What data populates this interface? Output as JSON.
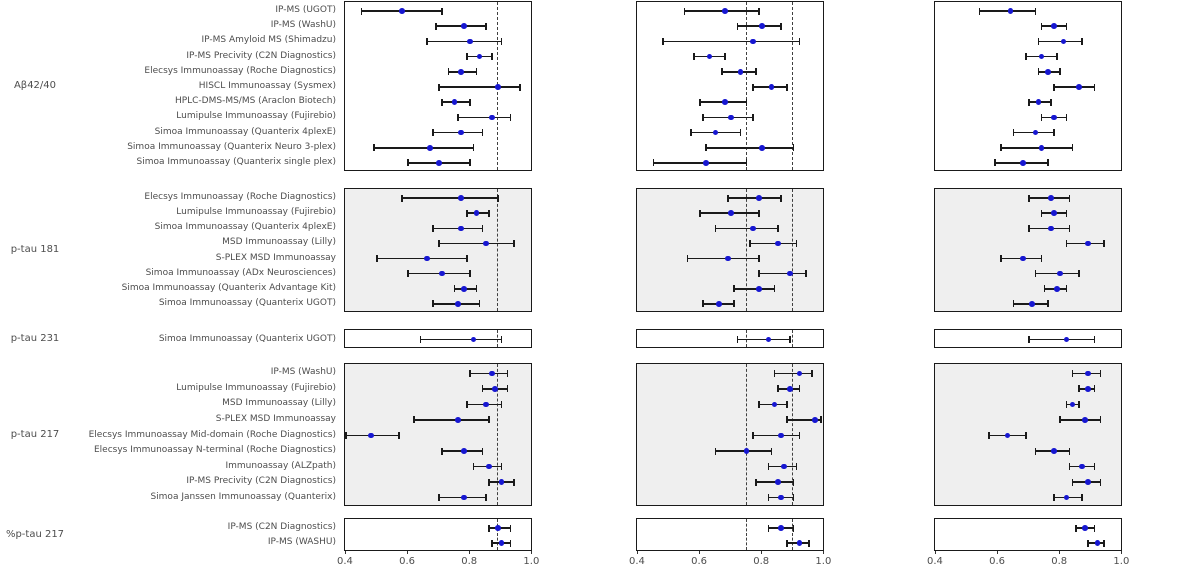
{
  "figure": {
    "description_labels": {
      "group_axis_groups": [
        "Aβ42/40",
        "p-tau 181",
        "p-tau 231",
        "p-tau 217",
        "%p-tau 217"
      ]
    }
  },
  "chart_data": {
    "type": "forest",
    "orientation": "horizontal",
    "n_panels": 3,
    "x_tick_labels": [
      "0.4",
      "0.6",
      "0.8",
      "1.0"
    ],
    "x_tick_values": [
      0.4,
      0.6,
      0.8,
      1.0
    ],
    "x_range": [
      0.397,
      1.002
    ],
    "grid": false,
    "panels": [
      {
        "name": "panel-1",
        "ref_lines": [
          0.89
        ]
      },
      {
        "name": "panel-2",
        "ref_lines": [
          0.75,
          0.9
        ]
      },
      {
        "name": "panel-3",
        "ref_lines": []
      }
    ],
    "groups": [
      {
        "label": "Aβ42/40",
        "shaded": false,
        "rows": [
          {
            "label": "IP-MS (UGOT)",
            "values": [
              [
                0.58,
                0.45,
                0.71
              ],
              [
                0.68,
                0.55,
                0.79
              ],
              [
                0.64,
                0.54,
                0.72
              ]
            ]
          },
          {
            "label": "IP-MS (WashU)",
            "values": [
              [
                0.78,
                0.69,
                0.85
              ],
              [
                0.8,
                0.72,
                0.86
              ],
              [
                0.78,
                0.74,
                0.82
              ]
            ]
          },
          {
            "label": "IP-MS Amyloid MS (Shimadzu)",
            "values": [
              [
                0.8,
                0.66,
                0.9
              ],
              [
                0.77,
                0.48,
                0.92
              ],
              [
                0.81,
                0.73,
                0.87
              ]
            ]
          },
          {
            "label": "IP-MS Precivity (C2N Diagnostics)",
            "values": [
              [
                0.83,
                0.79,
                0.87
              ],
              [
                0.63,
                0.58,
                0.68
              ],
              [
                0.74,
                0.69,
                0.79
              ]
            ]
          },
          {
            "label": "Elecsys Immunoassay (Roche Diagnostics)",
            "values": [
              [
                0.77,
                0.73,
                0.82
              ],
              [
                0.73,
                0.67,
                0.78
              ],
              [
                0.76,
                0.73,
                0.8
              ]
            ]
          },
          {
            "label": "HISCL Immunoassay (Sysmex)",
            "values": [
              [
                0.89,
                0.7,
                0.96
              ],
              [
                0.83,
                0.77,
                0.88
              ],
              [
                0.86,
                0.78,
                0.91
              ]
            ]
          },
          {
            "label": "HPLC-DMS-MS/MS (Araclon Biotech)",
            "values": [
              [
                0.75,
                0.71,
                0.8
              ],
              [
                0.68,
                0.6,
                0.75
              ],
              [
                0.73,
                0.7,
                0.77
              ]
            ]
          },
          {
            "label": "Lumipulse Immunoassay (Fujirebio)",
            "values": [
              [
                0.87,
                0.76,
                0.93
              ],
              [
                0.7,
                0.61,
                0.77
              ],
              [
                0.78,
                0.74,
                0.82
              ]
            ]
          },
          {
            "label": "Simoa Immunoassay (Quanterix 4plexE)",
            "values": [
              [
                0.77,
                0.68,
                0.84
              ],
              [
                0.65,
                0.57,
                0.73
              ],
              [
                0.72,
                0.65,
                0.78
              ]
            ]
          },
          {
            "label": "Simoa Immunoassay (Quanterix Neuro 3-plex)",
            "values": [
              [
                0.67,
                0.49,
                0.81
              ],
              [
                0.8,
                0.62,
                0.9
              ],
              [
                0.74,
                0.61,
                0.84
              ]
            ]
          },
          {
            "label": "Simoa Immunoassay (Quanterix single plex)",
            "values": [
              [
                0.7,
                0.6,
                0.8
              ],
              [
                0.62,
                0.45,
                0.75
              ],
              [
                0.68,
                0.59,
                0.76
              ]
            ]
          }
        ]
      },
      {
        "label": "p-tau 181",
        "shaded": true,
        "rows": [
          {
            "label": "Elecsys Immunoassay (Roche Diagnostics)",
            "values": [
              [
                0.77,
                0.58,
                0.89
              ],
              [
                0.79,
                0.69,
                0.86
              ],
              [
                0.77,
                0.7,
                0.83
              ]
            ]
          },
          {
            "label": "Lumipulse Immunoassay (Fujirebio)",
            "values": [
              [
                0.82,
                0.79,
                0.86
              ],
              [
                0.7,
                0.6,
                0.79
              ],
              [
                0.78,
                0.74,
                0.82
              ]
            ]
          },
          {
            "label": "Simoa Immunoassay (Quanterix 4plexE)",
            "values": [
              [
                0.77,
                0.68,
                0.84
              ],
              [
                0.77,
                0.65,
                0.85
              ],
              [
                0.77,
                0.7,
                0.83
              ]
            ]
          },
          {
            "label": "MSD Immunoassay (Lilly)",
            "values": [
              [
                0.85,
                0.7,
                0.94
              ],
              [
                0.85,
                0.76,
                0.91
              ],
              [
                0.89,
                0.82,
                0.94
              ]
            ]
          },
          {
            "label": "S-PLEX MSD Immunoassay",
            "values": [
              [
                0.66,
                0.5,
                0.79
              ],
              [
                0.69,
                0.56,
                0.79
              ],
              [
                0.68,
                0.61,
                0.74
              ]
            ]
          },
          {
            "label": "Simoa Immunoassay (ADx Neurosciences)",
            "values": [
              [
                0.71,
                0.6,
                0.8
              ],
              [
                0.89,
                0.79,
                0.94
              ],
              [
                0.8,
                0.72,
                0.86
              ]
            ]
          },
          {
            "label": "Simoa Immunoassay (Quanterix Advantage Kit)",
            "values": [
              [
                0.78,
                0.75,
                0.82
              ],
              [
                0.79,
                0.71,
                0.84
              ],
              [
                0.79,
                0.75,
                0.82
              ]
            ]
          },
          {
            "label": "Simoa Immunoassay (Quanterix UGOT)",
            "values": [
              [
                0.76,
                0.68,
                0.83
              ],
              [
                0.66,
                0.61,
                0.71
              ],
              [
                0.71,
                0.65,
                0.76
              ]
            ]
          }
        ]
      },
      {
        "label": "p-tau 231",
        "shaded": false,
        "rows": [
          {
            "label": "Simoa Immunoassay (Quanterix UGOT)",
            "values": [
              [
                0.81,
                0.64,
                0.9
              ],
              [
                0.82,
                0.72,
                0.89
              ],
              [
                0.82,
                0.7,
                0.91
              ]
            ]
          }
        ]
      },
      {
        "label": "p-tau 217",
        "shaded": true,
        "rows": [
          {
            "label": "IP-MS (WashU)",
            "values": [
              [
                0.87,
                0.8,
                0.92
              ],
              [
                0.92,
                0.84,
                0.96
              ],
              [
                0.89,
                0.84,
                0.93
              ]
            ]
          },
          {
            "label": "Lumipulse Immunoassay (Fujirebio)",
            "values": [
              [
                0.88,
                0.84,
                0.92
              ],
              [
                0.89,
                0.85,
                0.92
              ],
              [
                0.89,
                0.86,
                0.91
              ]
            ]
          },
          {
            "label": "MSD Immunoassay (Lilly)",
            "values": [
              [
                0.85,
                0.79,
                0.9
              ],
              [
                0.84,
                0.79,
                0.88
              ],
              [
                0.84,
                0.82,
                0.86
              ]
            ]
          },
          {
            "label": "S-PLEX MSD Immunoassay",
            "values": [
              [
                0.76,
                0.62,
                0.86
              ],
              [
                0.97,
                0.88,
                0.99
              ],
              [
                0.88,
                0.8,
                0.93
              ]
            ]
          },
          {
            "label": "Elecsys Immunoassay Mid-domain (Roche Diagnostics)",
            "values": [
              [
                0.48,
                0.4,
                0.57
              ],
              [
                0.86,
                0.77,
                0.92
              ],
              [
                0.63,
                0.57,
                0.69
              ]
            ]
          },
          {
            "label": "Elecsys Immunoassay N-terminal (Roche Diagnostics)",
            "values": [
              [
                0.78,
                0.71,
                0.84
              ],
              [
                0.75,
                0.65,
                0.83
              ],
              [
                0.78,
                0.72,
                0.83
              ]
            ]
          },
          {
            "label": "Immunoassay (ALZpath)",
            "values": [
              [
                0.86,
                0.81,
                0.9
              ],
              [
                0.87,
                0.82,
                0.91
              ],
              [
                0.87,
                0.83,
                0.91
              ]
            ]
          },
          {
            "label": "IP-MS Precivity (C2N Diagnostics)",
            "values": [
              [
                0.9,
                0.86,
                0.94
              ],
              [
                0.85,
                0.78,
                0.9
              ],
              [
                0.89,
                0.84,
                0.93
              ]
            ]
          },
          {
            "label": "Simoa Janssen Immunoassay (Quanterix)",
            "values": [
              [
                0.78,
                0.7,
                0.85
              ],
              [
                0.86,
                0.82,
                0.9
              ],
              [
                0.82,
                0.78,
                0.87
              ]
            ]
          }
        ]
      },
      {
        "label": "%p-tau 217",
        "shaded": false,
        "rows": [
          {
            "label": "IP-MS (C2N Diagnostics)",
            "values": [
              [
                0.89,
                0.86,
                0.93
              ],
              [
                0.86,
                0.82,
                0.9
              ],
              [
                0.88,
                0.85,
                0.91
              ]
            ]
          },
          {
            "label": "IP-MS (WASHU)",
            "values": [
              [
                0.9,
                0.87,
                0.93
              ],
              [
                0.92,
                0.88,
                0.95
              ],
              [
                0.92,
                0.89,
                0.94
              ]
            ]
          }
        ]
      }
    ],
    "colors": {
      "point": "#1717d1",
      "error_bar": "#1a1a1a",
      "ref_line": "#404040",
      "panel_border": "#1a1a1a",
      "shaded_panel_bg": "#efefef",
      "plain_panel_bg": "#ffffff",
      "text": "#4d4d4d"
    }
  }
}
